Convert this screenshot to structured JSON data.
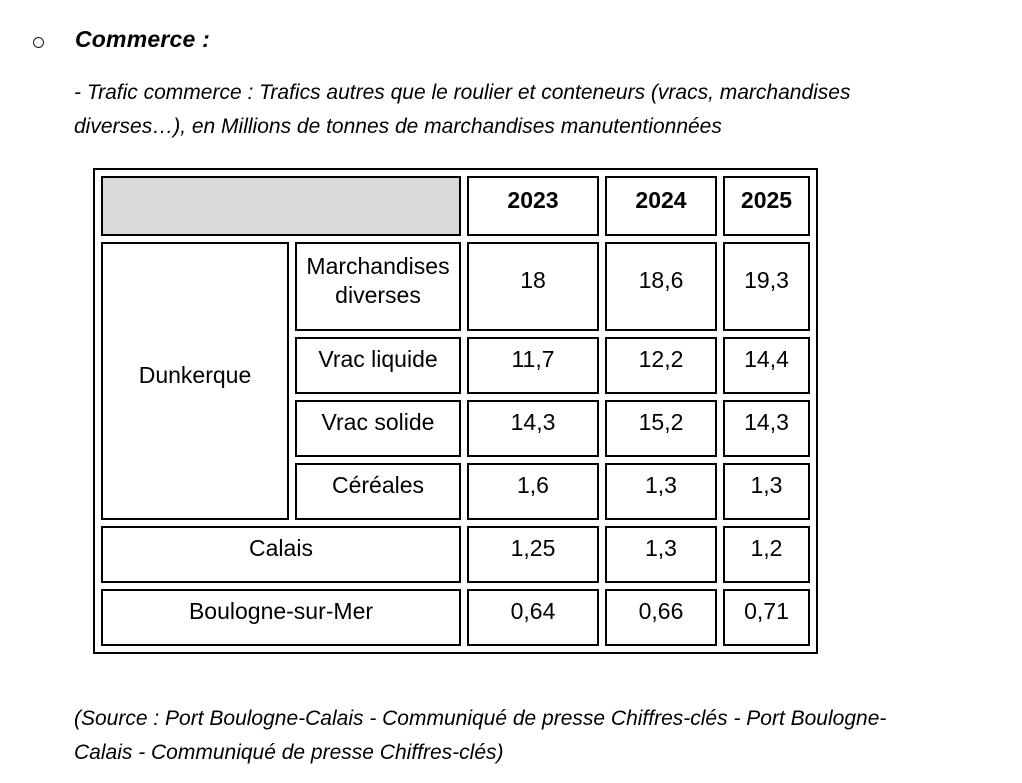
{
  "page": {
    "heading": "Commerce :",
    "intro_line1": "- Trafic commerce : Trafics autres que le roulier et conteneurs (vracs, marchandises",
    "intro_line2": "diverses…), en Millions de tonnes de marchandises manutentionnées",
    "source_line1": "(Source : Port Boulogne-Calais - Communiqué de presse Chiffres-clés - Port Boulogne-",
    "source_line2": "Calais - Communiqué de presse Chiffres-clés)"
  },
  "table": {
    "header_fill": "#d9d9d9",
    "years": [
      "2023",
      "2024",
      "2025"
    ],
    "rows": [
      {
        "port": "Dunkerque",
        "category": "Marchandises diverses",
        "values": [
          "18",
          "18,6",
          "19,3"
        ]
      },
      {
        "category": "Vrac liquide",
        "values": [
          "11,7",
          "12,2",
          "14,4"
        ]
      },
      {
        "category": "Vrac solide",
        "values": [
          "14,3",
          "15,2",
          "14,3"
        ]
      },
      {
        "category": "Céréales",
        "values": [
          "1,6",
          "1,3",
          "1,3"
        ]
      },
      {
        "port": "Calais",
        "values": [
          "1,25",
          "1,3",
          "1,2"
        ]
      },
      {
        "port": "Boulogne-sur-Mer",
        "values": [
          "0,64",
          "0,66",
          "0,71"
        ]
      }
    ]
  }
}
